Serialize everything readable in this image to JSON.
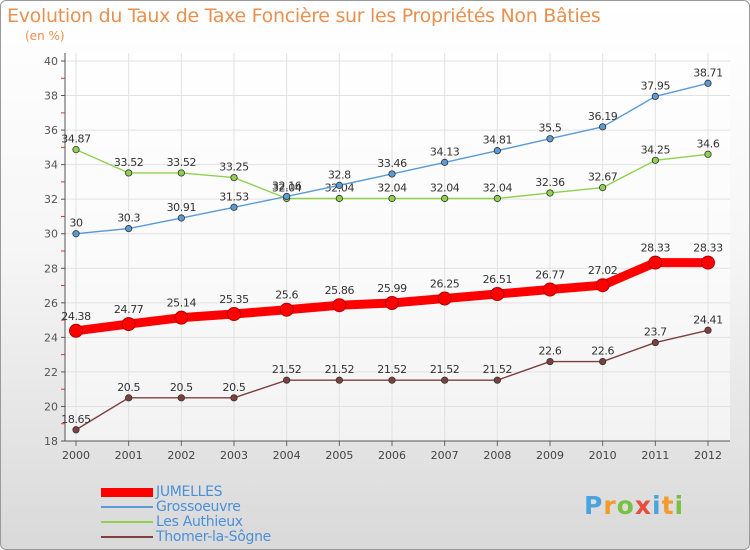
{
  "header": {
    "title": "Evolution du Taux de Taxe Foncière sur les Propriétés Non Bâties",
    "unit": "(en %)"
  },
  "logo": {
    "letters": [
      "P",
      "r",
      "o",
      "x",
      "i",
      "t",
      "i"
    ],
    "colors": [
      "#4aa3df",
      "#f29a2e",
      "#7ac143",
      "#e84d3d",
      "#4aa3df",
      "#f29a2e",
      "#7ac143"
    ]
  },
  "chart_data": {
    "type": "line",
    "title": "Evolution du Taux de Taxe Foncière sur les Propriétés Non Bâties",
    "ylabel": "(en %)",
    "xlabel": "",
    "x": [
      "2000",
      "2001",
      "2002",
      "2003",
      "2004",
      "2005",
      "2006",
      "2007",
      "2008",
      "2009",
      "2010",
      "2011",
      "2012"
    ],
    "ylim": [
      18,
      40
    ],
    "yticks": [
      18,
      20,
      22,
      24,
      26,
      28,
      30,
      32,
      34,
      36,
      38,
      40
    ],
    "grid": true,
    "legend_position": "bottom-left",
    "series": [
      {
        "name": "JUMELLES",
        "color": "#ff0000",
        "values": [
          24.38,
          24.77,
          25.14,
          25.35,
          25.6,
          25.86,
          25.99,
          26.25,
          26.51,
          26.77,
          27.02,
          28.33,
          28.33
        ],
        "labels": [
          "24.38",
          "24.77",
          "25.14",
          "25.35",
          "25.6",
          "25.86",
          "25.99",
          "26.25",
          "26.51",
          "26.77",
          "27.02",
          "28.33",
          "28.33"
        ]
      },
      {
        "name": "Grossoeuvre",
        "color": "#5b9bd5",
        "values": [
          30,
          30.3,
          30.91,
          31.53,
          32.16,
          32.8,
          33.46,
          34.13,
          34.81,
          35.5,
          36.19,
          37.95,
          38.71
        ],
        "labels": [
          "30",
          "30.3",
          "30.91",
          "31.53",
          "32.16",
          "32.8",
          "33.46",
          "34.13",
          "34.81",
          "35.5",
          "36.19",
          "37.95",
          "38.71"
        ]
      },
      {
        "name": "Les Authieux",
        "color": "#8fd14f",
        "values": [
          34.87,
          33.52,
          33.52,
          33.25,
          32.04,
          32.04,
          32.04,
          32.04,
          32.04,
          32.36,
          32.67,
          34.25,
          34.6
        ],
        "labels": [
          "34.87",
          "33.52",
          "33.52",
          "33.25",
          "32.04",
          "32.04",
          "32.04",
          "32.04",
          "32.04",
          "32.36",
          "32.67",
          "34.25",
          "34.6"
        ]
      },
      {
        "name": "Thomer-la-Sôgne",
        "color": "#7f3f3f",
        "values": [
          18.65,
          20.5,
          20.5,
          20.5,
          21.52,
          21.52,
          21.52,
          21.52,
          21.52,
          22.6,
          22.6,
          23.7,
          24.41
        ],
        "labels": [
          "18.65",
          "20.5",
          "20.5",
          "20.5",
          "21.52",
          "21.52",
          "21.52",
          "21.52",
          "21.52",
          "22.6",
          "22.6",
          "23.7",
          "24.41"
        ]
      }
    ]
  }
}
